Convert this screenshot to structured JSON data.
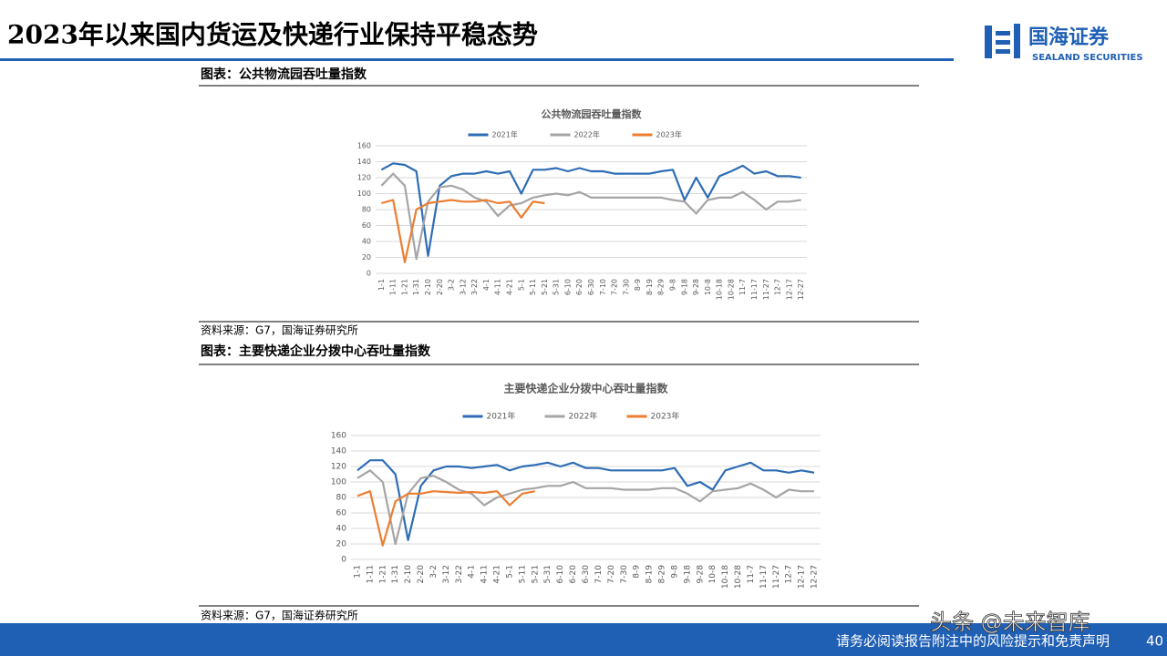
{
  "header": {
    "title": "2023年以来国内货运及快递行业保持平稳态势",
    "logo_cn": "国海证券",
    "logo_en": "SEALAND SECURITIES"
  },
  "footer": {
    "disclaimer": "请务必阅读报告附注中的风险提示和免责声明",
    "page": "40"
  },
  "watermark": "头条 @未来智库",
  "chart_data": [
    {
      "type": "line",
      "caption": "图表：公共物流园吞吐量指数",
      "source": "资料来源：G7，国海证券研究所",
      "title": "公共物流园吞吐量指数",
      "categories": [
        "1-1",
        "1-11",
        "1-21",
        "1-31",
        "2-10",
        "2-20",
        "3-2",
        "3-12",
        "3-22",
        "4-1",
        "4-11",
        "4-21",
        "5-1",
        "5-11",
        "5-21",
        "5-31",
        "6-10",
        "6-20",
        "6-30",
        "7-10",
        "7-20",
        "7-30",
        "8-9",
        "8-19",
        "8-29",
        "9-8",
        "9-18",
        "9-28",
        "10-8",
        "10-18",
        "10-28",
        "11-7",
        "11-17",
        "11-27",
        "12-7",
        "12-17",
        "12-27"
      ],
      "series": [
        {
          "name": "2021年",
          "color": "#2e6db4",
          "values": [
            130,
            138,
            136,
            128,
            22,
            110,
            122,
            125,
            125,
            128,
            125,
            128,
            100,
            130,
            130,
            132,
            128,
            132,
            128,
            128,
            125,
            125,
            125,
            125,
            128,
            130,
            92,
            120,
            95,
            122,
            128,
            135,
            125,
            128,
            122,
            122,
            120
          ]
        },
        {
          "name": "2022年",
          "color": "#a5a5a5",
          "values": [
            110,
            125,
            110,
            18,
            90,
            108,
            110,
            105,
            95,
            90,
            72,
            85,
            88,
            95,
            98,
            100,
            98,
            102,
            95,
            95,
            95,
            95,
            95,
            95,
            95,
            92,
            90,
            75,
            92,
            95,
            95,
            102,
            92,
            80,
            90,
            90,
            92
          ]
        },
        {
          "name": "2023年",
          "color": "#ed7d31",
          "values": [
            88,
            92,
            14,
            80,
            88,
            90,
            92,
            90,
            90,
            92,
            88,
            90,
            70,
            90,
            88,
            null,
            null,
            null,
            null,
            null,
            null,
            null,
            null,
            null,
            null,
            null,
            null,
            null,
            null,
            null,
            null,
            null,
            null,
            null,
            null,
            null,
            null
          ]
        }
      ],
      "ylim": [
        0,
        160
      ],
      "yticks": [
        0,
        20,
        40,
        60,
        80,
        100,
        120,
        140,
        160
      ],
      "grid": true,
      "legend": "top"
    },
    {
      "type": "line",
      "caption": "图表：主要快递企业分拨中心吞吐量指数",
      "source": "资料来源：G7，国海证券研究所",
      "title": "主要快递企业分拨中心吞吐量指数",
      "categories": [
        "1-1",
        "1-11",
        "1-21",
        "1-31",
        "2-10",
        "2-20",
        "3-2",
        "3-12",
        "3-22",
        "4-1",
        "4-11",
        "4-21",
        "5-1",
        "5-11",
        "5-21",
        "5-31",
        "6-10",
        "6-20",
        "6-30",
        "7-10",
        "7-20",
        "7-30",
        "8-9",
        "8-19",
        "8-29",
        "9-8",
        "9-18",
        "9-28",
        "10-8",
        "10-18",
        "10-28",
        "11-7",
        "11-17",
        "11-27",
        "12-7",
        "12-17",
        "12-27"
      ],
      "series": [
        {
          "name": "2021年",
          "color": "#2e6db4",
          "values": [
            115,
            128,
            128,
            110,
            25,
            95,
            115,
            120,
            120,
            118,
            120,
            122,
            115,
            120,
            122,
            125,
            120,
            125,
            118,
            118,
            115,
            115,
            115,
            115,
            115,
            118,
            95,
            100,
            90,
            115,
            120,
            125,
            115,
            115,
            112,
            115,
            112
          ]
        },
        {
          "name": "2022年",
          "color": "#a5a5a5",
          "values": [
            105,
            115,
            100,
            20,
            85,
            105,
            108,
            100,
            90,
            85,
            70,
            80,
            85,
            90,
            92,
            95,
            95,
            100,
            92,
            92,
            92,
            90,
            90,
            90,
            92,
            92,
            85,
            75,
            88,
            90,
            92,
            98,
            90,
            80,
            90,
            88,
            88
          ]
        },
        {
          "name": "2023年",
          "color": "#ed7d31",
          "values": [
            82,
            88,
            18,
            75,
            85,
            85,
            88,
            87,
            86,
            87,
            86,
            88,
            70,
            85,
            88,
            null,
            null,
            null,
            null,
            null,
            null,
            null,
            null,
            null,
            null,
            null,
            null,
            null,
            null,
            null,
            null,
            null,
            null,
            null,
            null,
            null,
            null
          ]
        }
      ],
      "ylim": [
        0,
        160
      ],
      "yticks": [
        0,
        20,
        40,
        60,
        80,
        100,
        120,
        140,
        160
      ],
      "grid": true,
      "legend": "top"
    }
  ]
}
